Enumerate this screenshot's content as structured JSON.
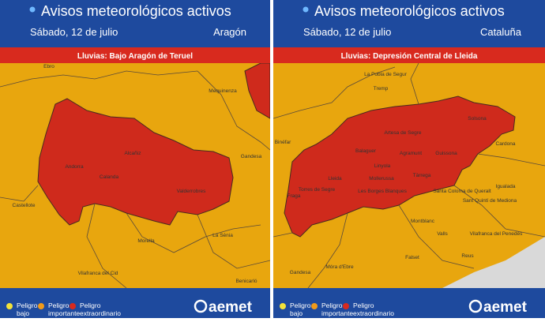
{
  "panels": [
    {
      "title": "Avisos meteorológicos activos",
      "date": "Sábado, 12 de julio",
      "region": "Aragón",
      "warning": "Lluvias:  Bajo Aragón de Teruel",
      "places": [
        "Ebro",
        "Mequinenza",
        "Alcañiz",
        "Andorra",
        "Calanda",
        "Valderrobres",
        "Gandesa",
        "Morella",
        "La Sénia",
        "Vilafranca del Cid",
        "Benicarló",
        "Castellote"
      ],
      "legend": [
        {
          "label": [
            "Peligro",
            "bajo"
          ]
        },
        {
          "label": [
            "Peligro",
            "importante"
          ]
        },
        {
          "label": [
            "Peligro",
            "extraordinario"
          ]
        }
      ],
      "brand": "aemet"
    },
    {
      "title": "Avisos meteorológicos activos",
      "date": "Sábado, 12 de julio",
      "region": "Cataluña",
      "warning": "Lluvias:  Depresión Central de Lleida",
      "places": [
        "La Pobla de Segur",
        "Tremp",
        "Solsona",
        "Artesa de Segre",
        "Balaguer",
        "Agramunt",
        "Guissona",
        "Cardona",
        "Binéfar",
        "Lleida",
        "Linyola",
        "Tàrrega",
        "Mollerussa",
        "Torres de Segre",
        "Les Borges Blanques",
        "Fraga",
        "Igualada",
        "Santa Coloma de Queralt",
        "Sant Quintí de Mediona",
        "Montblanc",
        "Valls",
        "Vilafranca del Penedès",
        "Reus",
        "Falset",
        "Gandesa",
        "Móra d'Ebre"
      ],
      "legend": [
        {
          "label": [
            "Peligro",
            "bajo"
          ]
        },
        {
          "label": [
            "Peligro",
            "importante"
          ]
        },
        {
          "label": [
            "Peligro",
            "extraordinario"
          ]
        }
      ],
      "brand": "aemet"
    }
  ]
}
